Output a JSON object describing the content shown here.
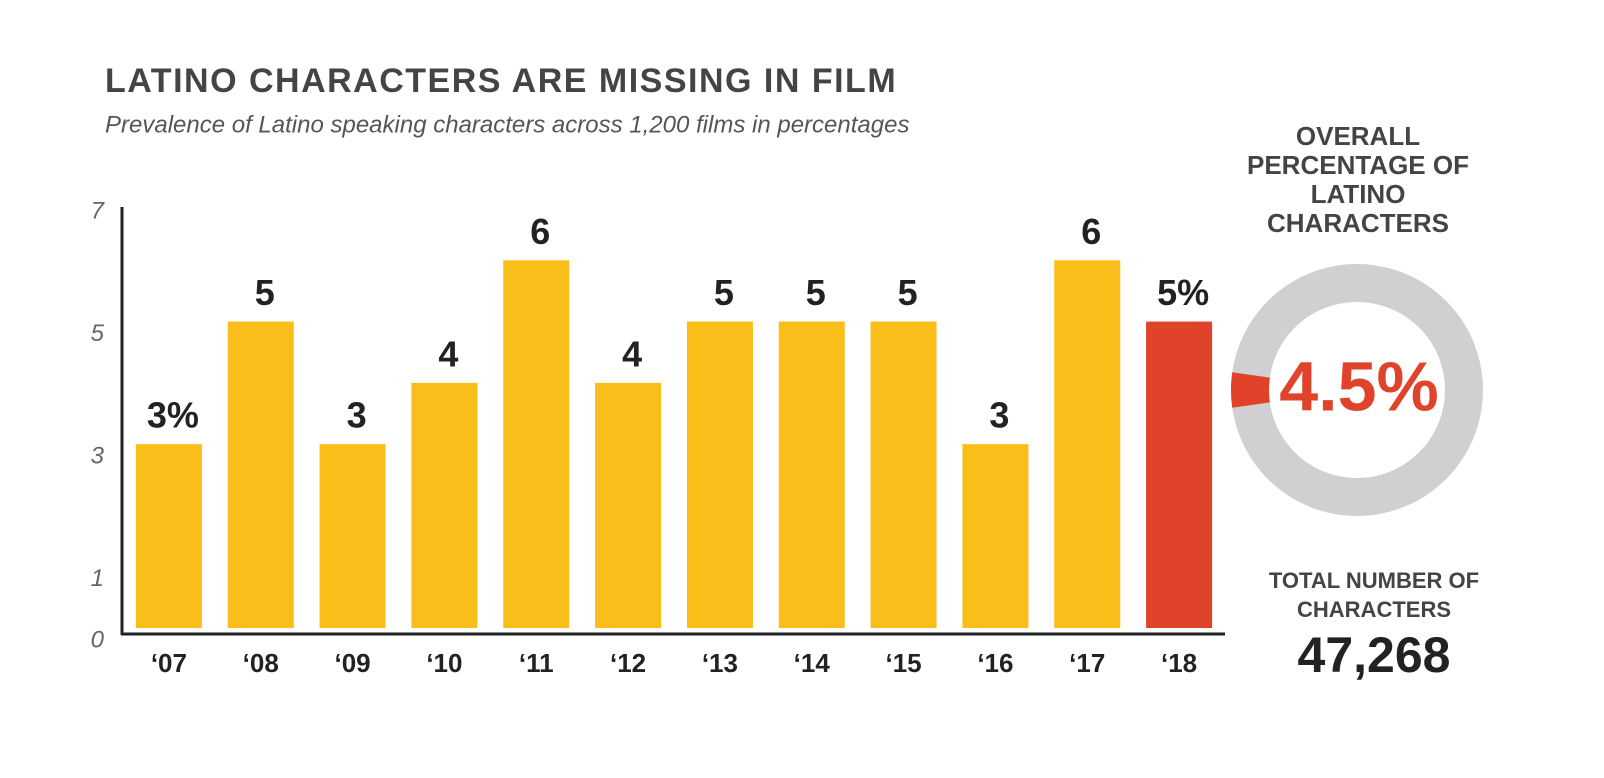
{
  "chart_data": [
    {
      "type": "bar",
      "title": "LATINO CHARACTERS ARE MISSING IN FILM",
      "subtitle": "Prevalence of Latino speaking characters across 1,200 films in percentages",
      "categories": [
        "‘07",
        "‘08",
        "‘09",
        "‘10",
        "‘11",
        "‘12",
        "‘13",
        "‘14",
        "‘15",
        "‘16",
        "‘17",
        "‘18"
      ],
      "values": [
        3,
        5,
        3,
        4,
        6,
        4,
        5,
        5,
        5,
        3,
        6,
        5
      ],
      "value_labels": [
        "3%",
        "5",
        "3",
        "4",
        "6",
        "4",
        "5",
        "5",
        "5",
        "3",
        "6",
        "5%"
      ],
      "colors": [
        "#f9be1a",
        "#f9be1a",
        "#f9be1a",
        "#f9be1a",
        "#f9be1a",
        "#f9be1a",
        "#f9be1a",
        "#f9be1a",
        "#f9be1a",
        "#f9be1a",
        "#f9be1a",
        "#e0432a"
      ],
      "ylim": [
        0,
        7
      ],
      "yticks": [
        0,
        1,
        3,
        5,
        7
      ]
    },
    {
      "type": "donut",
      "title": "OVERALL PERCENTAGE OF LATINO CHARACTERS",
      "value": 4.5,
      "value_label": "4.5%",
      "color": "#e0432a",
      "track_color": "#d0d0d2"
    }
  ],
  "total": {
    "label": "TOTAL NUMBER OF CHARACTERS",
    "value": 47268,
    "value_label": "47,268"
  }
}
